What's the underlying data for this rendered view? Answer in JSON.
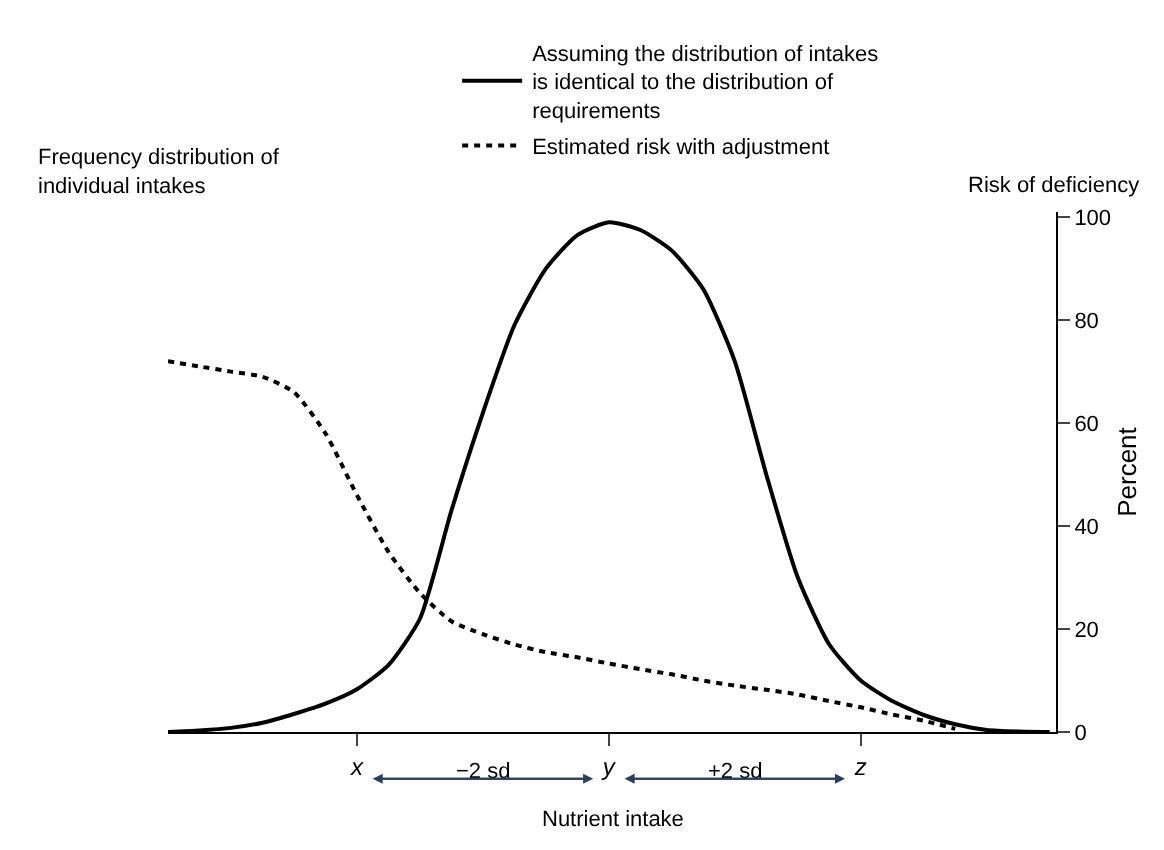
{
  "chart_data": {
    "type": "line",
    "xlabel": "Nutrient intake",
    "ylabel": "Frequency distribution of individual intakes",
    "y2label": "Percent",
    "annotations": [
      "Risk of deficiency",
      "−2 sd",
      "+2 sd"
    ],
    "categories": [
      null,
      null,
      null,
      null,
      null,
      null,
      "x",
      null,
      null,
      null,
      null,
      null,
      null,
      null,
      "y",
      null,
      null,
      null,
      null,
      null,
      null,
      null,
      "z",
      null,
      null,
      null,
      null,
      null,
      null
    ],
    "y2lim": [
      0,
      101
    ],
    "y2ticks": [
      0,
      20,
      40,
      60,
      80,
      100
    ],
    "legend": "top",
    "marker": "none",
    "series": [
      {
        "name": "Assuming the distribution of intakes is identical to the distribution of requirements",
        "color": "#000000",
        "axis": "y2",
        "line_style": "solid",
        "values": [
          0,
          0.3,
          0.8,
          1.8,
          3.5,
          5.5,
          8.3,
          13,
          22,
          43,
          62,
          79,
          90,
          96.5,
          99,
          97.5,
          93.5,
          86,
          72,
          50,
          30,
          17,
          10,
          6,
          3.3,
          1.5,
          0.4,
          0.1,
          0
        ]
      },
      {
        "name": "Estimated risk with adjustment",
        "color": "#000000",
        "axis": "y2",
        "line_style": "dotted",
        "values": [
          72,
          71,
          70,
          69,
          66,
          58,
          46,
          35,
          27,
          21.5,
          19,
          17,
          15.5,
          14.5,
          13.3,
          12.2,
          11.2,
          10,
          9,
          8.2,
          7.3,
          6,
          4.8,
          3.4,
          2.2,
          0.6,
          null,
          null,
          null
        ]
      }
    ]
  }
}
